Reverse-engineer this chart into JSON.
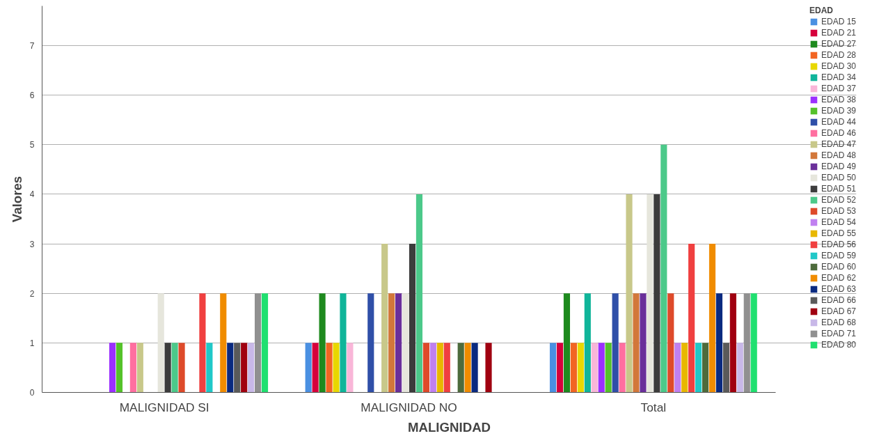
{
  "chart_data": {
    "type": "bar",
    "xlabel": "MALIGNIDAD",
    "ylabel": "Valores",
    "legend_title": "EDAD",
    "categories": [
      "MALIGNIDAD SI",
      "MALIGNIDAD NO",
      "Total"
    ],
    "ylim": [
      0,
      7.8
    ],
    "yticks": [
      0,
      1,
      2,
      3,
      4,
      5,
      6,
      7
    ],
    "grid": "y",
    "legend": "right",
    "series": [
      {
        "name": "EDAD 15",
        "color": "#4a90e2",
        "values": [
          0,
          1,
          1
        ]
      },
      {
        "name": "EDAD 21",
        "color": "#d6003c",
        "values": [
          0,
          1,
          1
        ]
      },
      {
        "name": "EDAD 27",
        "color": "#1e8a1e",
        "values": [
          0,
          2,
          2
        ]
      },
      {
        "name": "EDAD 28",
        "color": "#f26522",
        "values": [
          0,
          1,
          1
        ]
      },
      {
        "name": "EDAD 30",
        "color": "#e8d800",
        "values": [
          0,
          1,
          1
        ]
      },
      {
        "name": "EDAD 34",
        "color": "#10b59a",
        "values": [
          0,
          2,
          2
        ]
      },
      {
        "name": "EDAD 37",
        "color": "#f9b6d8",
        "values": [
          0,
          1,
          1
        ]
      },
      {
        "name": "EDAD 38",
        "color": "#9b30ff",
        "values": [
          1,
          0,
          1
        ]
      },
      {
        "name": "EDAD 39",
        "color": "#55c22a",
        "values": [
          1,
          0,
          1
        ]
      },
      {
        "name": "EDAD 44",
        "color": "#2f4fa8",
        "values": [
          0,
          2,
          2
        ]
      },
      {
        "name": "EDAD 46",
        "color": "#ff6fa0",
        "values": [
          1,
          0,
          1
        ]
      },
      {
        "name": "EDAD 47",
        "color": "#c8c88a",
        "values": [
          1,
          3,
          4
        ]
      },
      {
        "name": "EDAD 48",
        "color": "#d2773a",
        "values": [
          0,
          2,
          2
        ]
      },
      {
        "name": "EDAD 49",
        "color": "#6a2f9a",
        "values": [
          0,
          2,
          2
        ]
      },
      {
        "name": "EDAD 50",
        "color": "#e6e6dc",
        "values": [
          2,
          2,
          4
        ]
      },
      {
        "name": "EDAD 51",
        "color": "#3c3c3c",
        "values": [
          1,
          3,
          4
        ]
      },
      {
        "name": "EDAD 52",
        "color": "#4cc98a",
        "values": [
          1,
          4,
          5
        ]
      },
      {
        "name": "EDAD 53",
        "color": "#de4a2a",
        "values": [
          1,
          1,
          2
        ]
      },
      {
        "name": "EDAD 54",
        "color": "#c080f0",
        "values": [
          0,
          1,
          1
        ]
      },
      {
        "name": "EDAD 55",
        "color": "#e8b800",
        "values": [
          0,
          1,
          1
        ]
      },
      {
        "name": "EDAD 56",
        "color": "#f04040",
        "values": [
          2,
          1,
          3
        ]
      },
      {
        "name": "EDAD 59",
        "color": "#20c8c8",
        "values": [
          1,
          0,
          1
        ]
      },
      {
        "name": "EDAD 60",
        "color": "#4d6b3c",
        "values": [
          0,
          1,
          1
        ]
      },
      {
        "name": "EDAD 62",
        "color": "#f08c00",
        "values": [
          2,
          1,
          3
        ]
      },
      {
        "name": "EDAD 63",
        "color": "#0a2a80",
        "values": [
          1,
          1,
          2
        ]
      },
      {
        "name": "EDAD 66",
        "color": "#5a5a5a",
        "values": [
          1,
          0,
          1
        ]
      },
      {
        "name": "EDAD 67",
        "color": "#a00010",
        "values": [
          1,
          1,
          2
        ]
      },
      {
        "name": "EDAD 68",
        "color": "#c8b8e8",
        "values": [
          1,
          0,
          1
        ]
      },
      {
        "name": "EDAD 71",
        "color": "#909090",
        "values": [
          2,
          0,
          2
        ]
      },
      {
        "name": "EDAD 80",
        "color": "#20e070",
        "values": [
          2,
          0,
          2
        ]
      }
    ]
  }
}
